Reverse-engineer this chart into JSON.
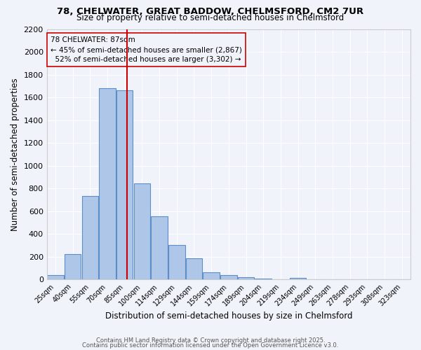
{
  "title1": "78, CHELWATER, GREAT BADDOW, CHELMSFORD, CM2 7UR",
  "title2": "Size of property relative to semi-detached houses in Chelmsford",
  "xlabel": "Distribution of semi-detached houses by size in Chelmsford",
  "ylabel": "Number of semi-detached properties",
  "categories": [
    "25sqm",
    "40sqm",
    "55sqm",
    "70sqm",
    "85sqm",
    "100sqm",
    "114sqm",
    "129sqm",
    "144sqm",
    "159sqm",
    "174sqm",
    "189sqm",
    "204sqm",
    "219sqm",
    "234sqm",
    "249sqm",
    "263sqm",
    "278sqm",
    "293sqm",
    "308sqm",
    "323sqm"
  ],
  "values": [
    40,
    225,
    730,
    1680,
    1660,
    845,
    555,
    300,
    185,
    65,
    35,
    20,
    10,
    0,
    13,
    0,
    0,
    0,
    0,
    0,
    0
  ],
  "bar_color": "#aec6e8",
  "bar_edge_color": "#5b8dc8",
  "vline_color": "#cc0000",
  "property_label": "78 CHELWATER: 87sqm",
  "pct_smaller": 45,
  "count_smaller": 2867,
  "pct_larger": 52,
  "count_larger": 3302,
  "annotation_box_color": "#cc0000",
  "ylim": [
    0,
    2200
  ],
  "yticks": [
    0,
    200,
    400,
    600,
    800,
    1000,
    1200,
    1400,
    1600,
    1800,
    2000,
    2200
  ],
  "footer1": "Contains HM Land Registry data © Crown copyright and database right 2025.",
  "footer2": "Contains public sector information licensed under the Open Government Licence v3.0.",
  "background_color": "#f0f4fa",
  "grid_color": "#ffffff",
  "vline_pos": 4.13
}
